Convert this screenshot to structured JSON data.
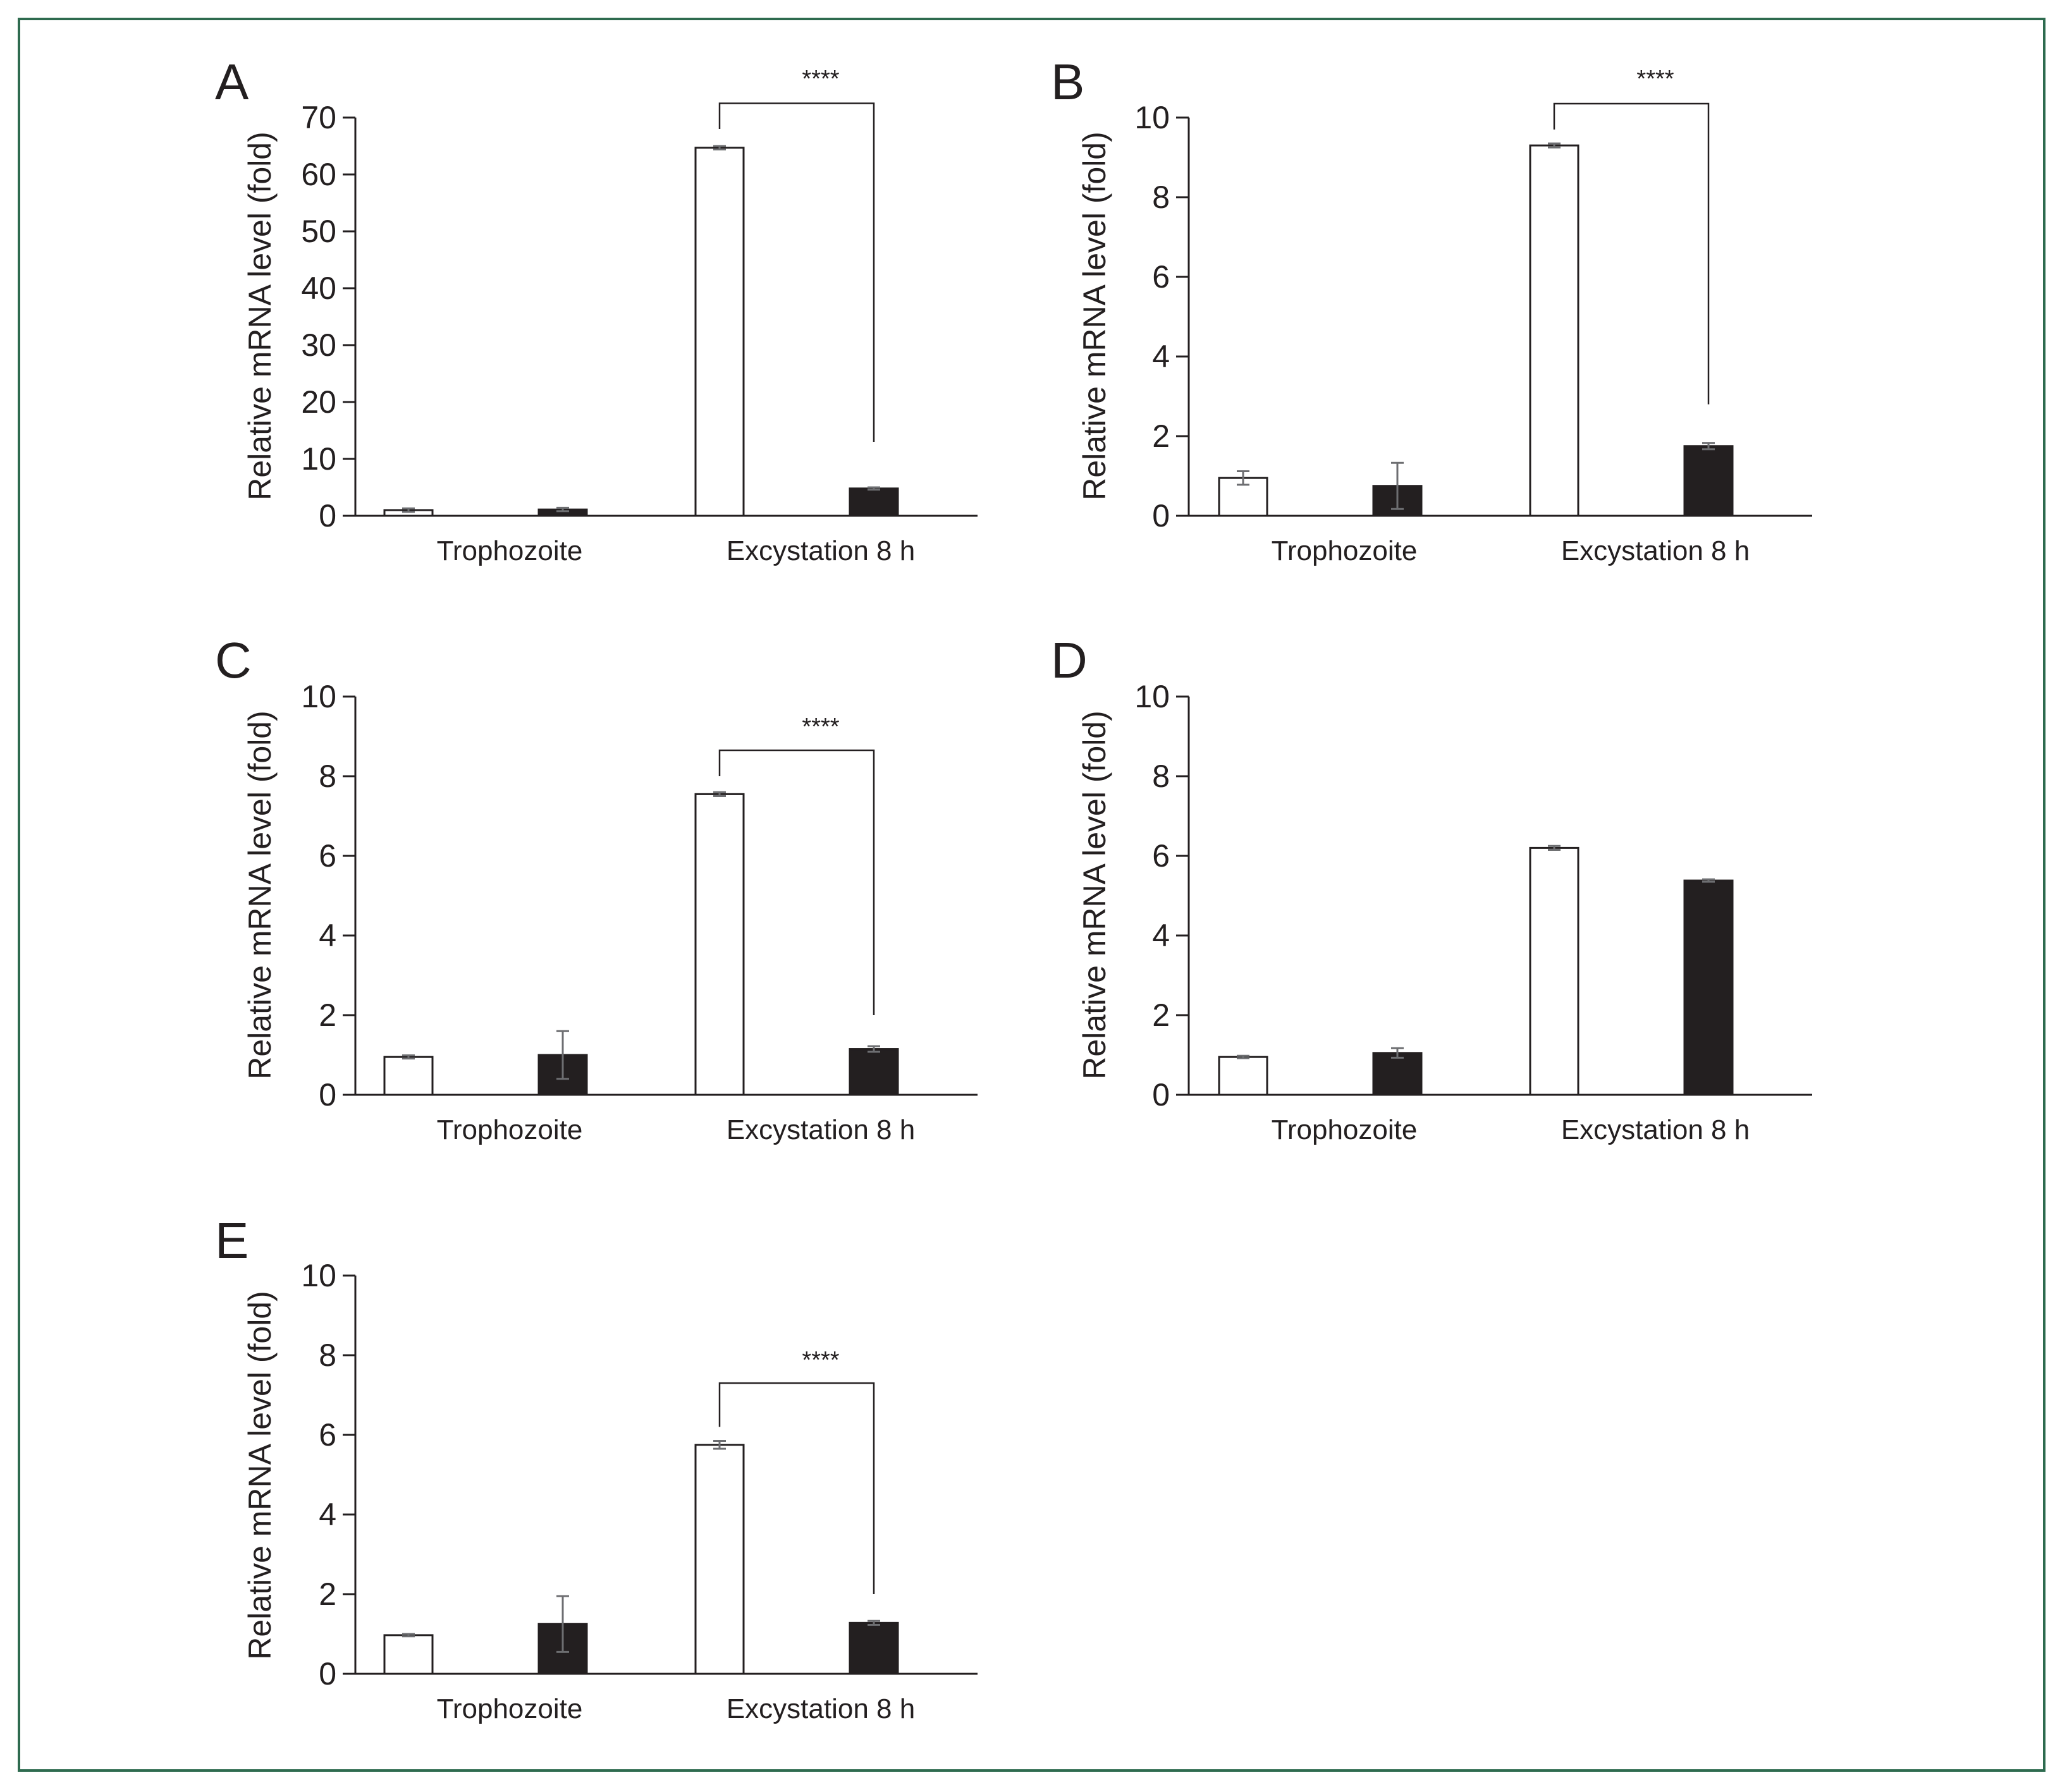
{
  "colors": {
    "frame": "#2e6b4f",
    "axis": "#231f20",
    "white_bar": "#ffffff",
    "black_bar": "#231f20",
    "error_bar": "#6d6e71"
  },
  "chart_data": [
    {
      "panel": "A",
      "type": "bar",
      "ylabel": "Relative mRNA level (fold)",
      "categories": [
        "Trophozoite",
        "Excystation 8 h"
      ],
      "ylim": [
        0,
        70
      ],
      "yticks": [
        "0",
        "10",
        "20",
        "30",
        "40",
        "50",
        "60",
        "70"
      ],
      "series": [
        {
          "name": "white",
          "values": [
            1.0,
            64.7
          ],
          "errors": [
            0.3,
            0.3
          ]
        },
        {
          "name": "black",
          "values": [
            1.1,
            4.8
          ],
          "errors": [
            0.3,
            0.2
          ]
        }
      ],
      "significance": {
        "label": "****",
        "category_index": 1,
        "bracket_y": 72.5,
        "left_end": 68.0,
        "right_end": 13.0
      }
    },
    {
      "panel": "B",
      "type": "bar",
      "ylabel": "Relative mRNA level (fold)",
      "categories": [
        "Trophozoite",
        "Excystation 8 h"
      ],
      "ylim": [
        0,
        10
      ],
      "yticks": [
        "0",
        "2",
        "4",
        "6",
        "8",
        "10"
      ],
      "series": [
        {
          "name": "white",
          "values": [
            0.95,
            9.3
          ],
          "errors": [
            0.17,
            0.05
          ]
        },
        {
          "name": "black",
          "values": [
            0.75,
            1.75
          ],
          "errors": [
            0.58,
            0.08
          ]
        }
      ],
      "significance": {
        "label": "****",
        "category_index": 1,
        "bracket_y": 10.35,
        "left_end": 9.7,
        "right_end": 2.8
      }
    },
    {
      "panel": "C",
      "type": "bar",
      "ylabel": "Relative mRNA level (fold)",
      "categories": [
        "Trophozoite",
        "Excystation 8 h"
      ],
      "ylim": [
        0,
        10
      ],
      "yticks": [
        "0",
        "2",
        "4",
        "6",
        "8",
        "10"
      ],
      "series": [
        {
          "name": "white",
          "values": [
            0.95,
            7.55
          ],
          "errors": [
            0.04,
            0.05
          ]
        },
        {
          "name": "black",
          "values": [
            1.0,
            1.15
          ],
          "errors": [
            0.6,
            0.07
          ]
        }
      ],
      "significance": {
        "label": "****",
        "category_index": 1,
        "bracket_y": 8.65,
        "left_end": 8.0,
        "right_end": 2.0
      }
    },
    {
      "panel": "D",
      "type": "bar",
      "ylabel": "Relative mRNA level (fold)",
      "categories": [
        "Trophozoite",
        "Excystation 8 h"
      ],
      "ylim": [
        0,
        10
      ],
      "yticks": [
        "0",
        "2",
        "4",
        "6",
        "8",
        "10"
      ],
      "series": [
        {
          "name": "white",
          "values": [
            0.95,
            6.2
          ],
          "errors": [
            0.03,
            0.05
          ]
        },
        {
          "name": "black",
          "values": [
            1.05,
            5.38
          ],
          "errors": [
            0.12,
            0.03
          ]
        }
      ],
      "significance": null
    },
    {
      "panel": "E",
      "type": "bar",
      "ylabel": "Relative mRNA level (fold)",
      "categories": [
        "Trophozoite",
        "Excystation 8 h"
      ],
      "ylim": [
        0,
        10
      ],
      "yticks": [
        "0",
        "2",
        "4",
        "6",
        "8",
        "10"
      ],
      "series": [
        {
          "name": "white",
          "values": [
            0.97,
            5.75
          ],
          "errors": [
            0.03,
            0.1
          ]
        },
        {
          "name": "black",
          "values": [
            1.25,
            1.28
          ],
          "errors": [
            0.7,
            0.05
          ]
        }
      ],
      "significance": {
        "label": "****",
        "category_index": 1,
        "bracket_y": 7.3,
        "left_end": 6.2,
        "right_end": 2.0
      }
    }
  ]
}
